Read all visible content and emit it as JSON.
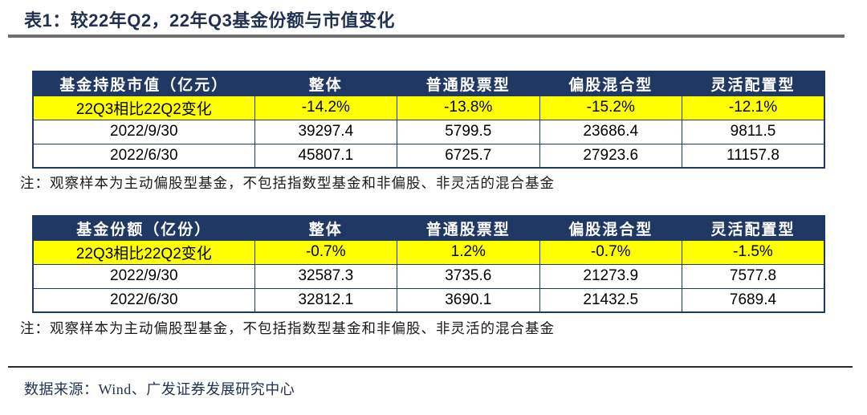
{
  "page": {
    "title": "表1：较22年Q2，22年Q3基金份额与市值变化",
    "source": "数据来源：Wind、广发证券发展研究中心"
  },
  "colors": {
    "header_bg": "#1F3864",
    "header_text": "#FFFFFF",
    "highlight_bg": "#FFFF00",
    "title_text": "#1F3050",
    "border": "#1F3864",
    "rule_gray": "#6E6E6E"
  },
  "tables": [
    {
      "header": [
        "基金持股市值（亿元）",
        "整体",
        "普通股票型",
        "偏股混合型",
        "灵活配置型"
      ],
      "highlight": {
        "label": "22Q3相比22Q2变化",
        "values": [
          "-14.2%",
          "-13.8%",
          "-15.2%",
          "-12.1%"
        ]
      },
      "rows": [
        {
          "label": "2022/9/30",
          "values": [
            "39297.4",
            "5799.5",
            "23686.4",
            "9811.5"
          ]
        },
        {
          "label": "2022/6/30",
          "values": [
            "45807.1",
            "6725.7",
            "27923.6",
            "11157.8"
          ]
        }
      ],
      "note": "注：观察样本为主动偏股型基金，不包括指数型基金和非偏股、非灵活的混合基金"
    },
    {
      "header": [
        "基金份额（亿份）",
        "整体",
        "普通股票型",
        "偏股混合型",
        "灵活配置型"
      ],
      "highlight": {
        "label": "22Q3相比22Q2变化",
        "values": [
          "-0.7%",
          "1.2%",
          "-0.7%",
          "-1.5%"
        ]
      },
      "rows": [
        {
          "label": "2022/9/30",
          "values": [
            "32587.3",
            "3735.6",
            "21273.9",
            "7577.8"
          ]
        },
        {
          "label": "2022/6/30",
          "values": [
            "32812.1",
            "3690.1",
            "21432.5",
            "7689.4"
          ]
        }
      ],
      "note": "注：观察样本为主动偏股型基金，不包括指数型基金和非偏股、非灵活的混合基金"
    }
  ]
}
